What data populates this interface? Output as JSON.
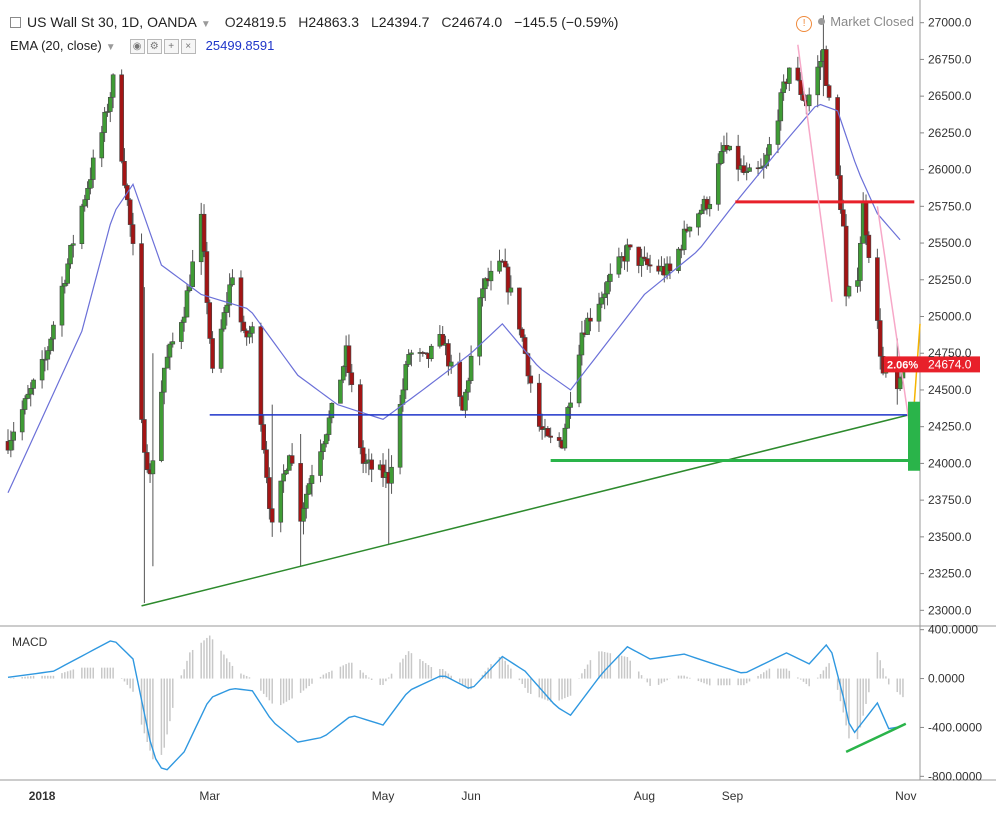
{
  "header": {
    "symbol": "US Wall St 30, 1D, OANDA",
    "open_label": "O",
    "open": "24819.5",
    "high_label": "H",
    "high": "24863.3",
    "low_label": "L",
    "low": "24394.7",
    "close_label": "C",
    "close": "24674.0",
    "change": "−145.5 (−0.59%)",
    "indicator": "EMA (20, close)",
    "indicator_value": "25499.8591",
    "status": "Market Closed",
    "alert_icon": "!"
  },
  "macd_label": "MACD",
  "colors": {
    "up": "#3f9c35",
    "down": "#a31515",
    "wick": "#555555",
    "ema": "#6b70d8",
    "macd_line": "#2f98e0",
    "histogram": "#c8c8c8",
    "price_tag": "#e8202a"
  },
  "chart_data": {
    "type": "candlestick",
    "title": "US Wall St 30, 1D, OANDA",
    "price_axis": {
      "ylim": [
        22900,
        27100
      ],
      "ticks": [
        23000,
        23250,
        23500,
        23750,
        24000,
        24250,
        24500,
        24750,
        25000,
        25250,
        25500,
        25750,
        26000,
        26250,
        26500,
        26750,
        27000
      ],
      "tick_labels": [
        "23000.0",
        "23250.0",
        "23500.0",
        "23750.0",
        "24000.0",
        "24250.0",
        "24500.0",
        "24750.0",
        "25000.0",
        "25250.0",
        "25500.0",
        "25750.0",
        "26000.0",
        "26250.0",
        "26500.0",
        "26750.0",
        "27000.0"
      ]
    },
    "time_axis": {
      "start": "2017-12-20",
      "end": "2018-11-06",
      "labels": [
        {
          "date": "2018-01-01",
          "text": "2018",
          "bold": true
        },
        {
          "date": "2018-03-01",
          "text": "Mar"
        },
        {
          "date": "2018-05-01",
          "text": "May"
        },
        {
          "date": "2018-06-01",
          "text": "Jun"
        },
        {
          "date": "2018-08-01",
          "text": "Aug"
        },
        {
          "date": "2018-09-01",
          "text": "Sep"
        },
        {
          "date": "2018-11-01",
          "text": "Nov"
        }
      ]
    },
    "price_path": [
      [
        "2017-12-20",
        24150
      ],
      [
        "2018-01-02",
        24700
      ],
      [
        "2018-01-08",
        25200
      ],
      [
        "2018-01-15",
        25750
      ],
      [
        "2018-01-22",
        26250
      ],
      [
        "2018-01-26",
        26600
      ],
      [
        "2018-02-02",
        25450
      ],
      [
        "2018-02-05",
        24250
      ],
      [
        "2018-02-08",
        23900
      ],
      [
        "2018-02-13",
        24650
      ],
      [
        "2018-02-20",
        25050
      ],
      [
        "2018-02-26",
        25650
      ],
      [
        "2018-03-02",
        24600
      ],
      [
        "2018-03-09",
        25300
      ],
      [
        "2018-03-13",
        24850
      ],
      [
        "2018-03-16",
        24900
      ],
      [
        "2018-03-23",
        23550
      ],
      [
        "2018-03-29",
        24100
      ],
      [
        "2018-04-02",
        23650
      ],
      [
        "2018-04-06",
        23950
      ],
      [
        "2018-04-13",
        24350
      ],
      [
        "2018-04-18",
        24750
      ],
      [
        "2018-04-24",
        24000
      ],
      [
        "2018-05-03",
        23900
      ],
      [
        "2018-05-10",
        24750
      ],
      [
        "2018-05-16",
        24700
      ],
      [
        "2018-05-22",
        24850
      ],
      [
        "2018-05-29",
        24350
      ],
      [
        "2018-06-05",
        25200
      ],
      [
        "2018-06-12",
        25350
      ],
      [
        "2018-06-18",
        24950
      ],
      [
        "2018-06-25",
        24250
      ],
      [
        "2018-06-28",
        24150
      ],
      [
        "2018-07-03",
        24150
      ],
      [
        "2018-07-10",
        24900
      ],
      [
        "2018-07-17",
        25150
      ],
      [
        "2018-07-26",
        25450
      ],
      [
        "2018-08-01",
        25350
      ],
      [
        "2018-08-10",
        25300
      ],
      [
        "2018-08-17",
        25650
      ],
      [
        "2018-08-24",
        25800
      ],
      [
        "2018-08-29",
        26150
      ],
      [
        "2018-09-06",
        25950
      ],
      [
        "2018-09-12",
        26000
      ],
      [
        "2018-09-21",
        26700
      ],
      [
        "2018-09-27",
        26450
      ],
      [
        "2018-10-03",
        26800
      ],
      [
        "2018-10-05",
        26450
      ],
      [
        "2018-10-10",
        25600
      ],
      [
        "2018-10-11",
        25100
      ],
      [
        "2018-10-15",
        25300
      ],
      [
        "2018-10-17",
        25750
      ],
      [
        "2018-10-19",
        25450
      ],
      [
        "2018-10-24",
        24600
      ],
      [
        "2018-10-26",
        24650
      ],
      [
        "2018-10-29",
        24450
      ],
      [
        "2018-10-31",
        24674
      ]
    ],
    "ema_path": [
      [
        "2017-12-20",
        23800
      ],
      [
        "2018-01-15",
        24900
      ],
      [
        "2018-01-26",
        25700
      ],
      [
        "2018-02-02",
        25900
      ],
      [
        "2018-02-12",
        25350
      ],
      [
        "2018-02-26",
        25150
      ],
      [
        "2018-03-15",
        25050
      ],
      [
        "2018-04-01",
        24600
      ],
      [
        "2018-04-15",
        24400
      ],
      [
        "2018-05-01",
        24300
      ],
      [
        "2018-05-15",
        24500
      ],
      [
        "2018-06-01",
        24750
      ],
      [
        "2018-06-12",
        24950
      ],
      [
        "2018-06-25",
        24650
      ],
      [
        "2018-07-06",
        24500
      ],
      [
        "2018-07-20",
        24850
      ],
      [
        "2018-08-01",
        25150
      ],
      [
        "2018-08-20",
        25450
      ],
      [
        "2018-09-01",
        25750
      ],
      [
        "2018-09-20",
        26200
      ],
      [
        "2018-10-01",
        26450
      ],
      [
        "2018-10-08",
        26400
      ],
      [
        "2018-10-15",
        26000
      ],
      [
        "2018-10-22",
        25700
      ],
      [
        "2018-10-31",
        25500
      ]
    ],
    "spikes": [
      {
        "date": "2018-02-06",
        "low": 23050,
        "high": 25200
      },
      {
        "date": "2018-02-09",
        "low": 23300,
        "high": 24750
      },
      {
        "date": "2018-03-23",
        "low": 23500,
        "high": 24400
      },
      {
        "date": "2018-04-02",
        "low": 23300,
        "high": 24200
      },
      {
        "date": "2018-05-03",
        "low": 23450,
        "high": 24100
      },
      {
        "date": "2018-10-03",
        "low": 26500,
        "high": 27050
      },
      {
        "date": "2018-10-29",
        "low": 24400,
        "high": 24850
      }
    ],
    "annotations": [
      {
        "kind": "trendline",
        "color": "#2d8a2d",
        "from": [
          "2018-02-05",
          23030
        ],
        "to": [
          "2018-11-02",
          24330
        ]
      },
      {
        "kind": "hline",
        "color": "#1f35c9",
        "from": [
          "2018-03-01",
          24330
        ],
        "to": [
          "2018-11-02",
          24330
        ]
      },
      {
        "kind": "hline",
        "color": "#2ab44a",
        "width": 3,
        "from": [
          "2018-06-29",
          24020
        ],
        "to": [
          "2018-11-04",
          24020
        ]
      },
      {
        "kind": "hline",
        "color": "#e8202a",
        "width": 3,
        "from": [
          "2018-09-02",
          25780
        ],
        "to": [
          "2018-11-04",
          25780
        ]
      },
      {
        "kind": "line",
        "color": "#f7a8c8",
        "from": [
          "2018-09-24",
          26850
        ],
        "to": [
          "2018-10-06",
          25100
        ]
      },
      {
        "kind": "line",
        "color": "#f7a8c8",
        "from": [
          "2018-10-22",
          25750
        ],
        "to": [
          "2018-11-02",
          24300
        ]
      },
      {
        "kind": "line",
        "color": "#f5b400",
        "from": [
          "2018-11-03",
          24150
        ],
        "to": [
          "2018-11-06",
          24950
        ]
      }
    ],
    "price_tag": {
      "value": 24674.0,
      "text": "24674.0",
      "pct_text": "2.06%"
    },
    "macd": {
      "ylim": [
        -830,
        430
      ],
      "ticks": [
        400,
        0,
        -400,
        -800
      ],
      "tick_labels": [
        "400.0000",
        "0.0000",
        "-400.0000",
        "-800.0000"
      ],
      "line": [
        [
          "2017-12-20",
          10
        ],
        [
          "2018-01-05",
          60
        ],
        [
          "2018-01-26",
          320
        ],
        [
          "2018-02-02",
          160
        ],
        [
          "2018-02-09",
          -620
        ],
        [
          "2018-02-13",
          -770
        ],
        [
          "2018-02-20",
          -600
        ],
        [
          "2018-03-01",
          -160
        ],
        [
          "2018-03-09",
          -80
        ],
        [
          "2018-03-16",
          -100
        ],
        [
          "2018-03-23",
          -350
        ],
        [
          "2018-04-01",
          -520
        ],
        [
          "2018-04-10",
          -480
        ],
        [
          "2018-04-20",
          -300
        ],
        [
          "2018-05-01",
          -380
        ],
        [
          "2018-05-10",
          -100
        ],
        [
          "2018-05-22",
          30
        ],
        [
          "2018-06-01",
          -90
        ],
        [
          "2018-06-12",
          180
        ],
        [
          "2018-06-20",
          60
        ],
        [
          "2018-07-01",
          -230
        ],
        [
          "2018-07-06",
          -300
        ],
        [
          "2018-07-17",
          40
        ],
        [
          "2018-07-26",
          260
        ],
        [
          "2018-08-03",
          160
        ],
        [
          "2018-08-15",
          200
        ],
        [
          "2018-08-24",
          130
        ],
        [
          "2018-09-05",
          40
        ],
        [
          "2018-09-20",
          210
        ],
        [
          "2018-09-28",
          120
        ],
        [
          "2018-10-05",
          300
        ],
        [
          "2018-10-10",
          -150
        ],
        [
          "2018-10-13",
          -470
        ],
        [
          "2018-10-16",
          -380
        ],
        [
          "2018-10-22",
          -200
        ],
        [
          "2018-10-26",
          -410
        ],
        [
          "2018-10-31",
          -390
        ]
      ],
      "annotation": {
        "color": "#2ab44a",
        "from": [
          "2018-10-11",
          -600
        ],
        "to": [
          "2018-11-01",
          -370
        ]
      }
    }
  }
}
